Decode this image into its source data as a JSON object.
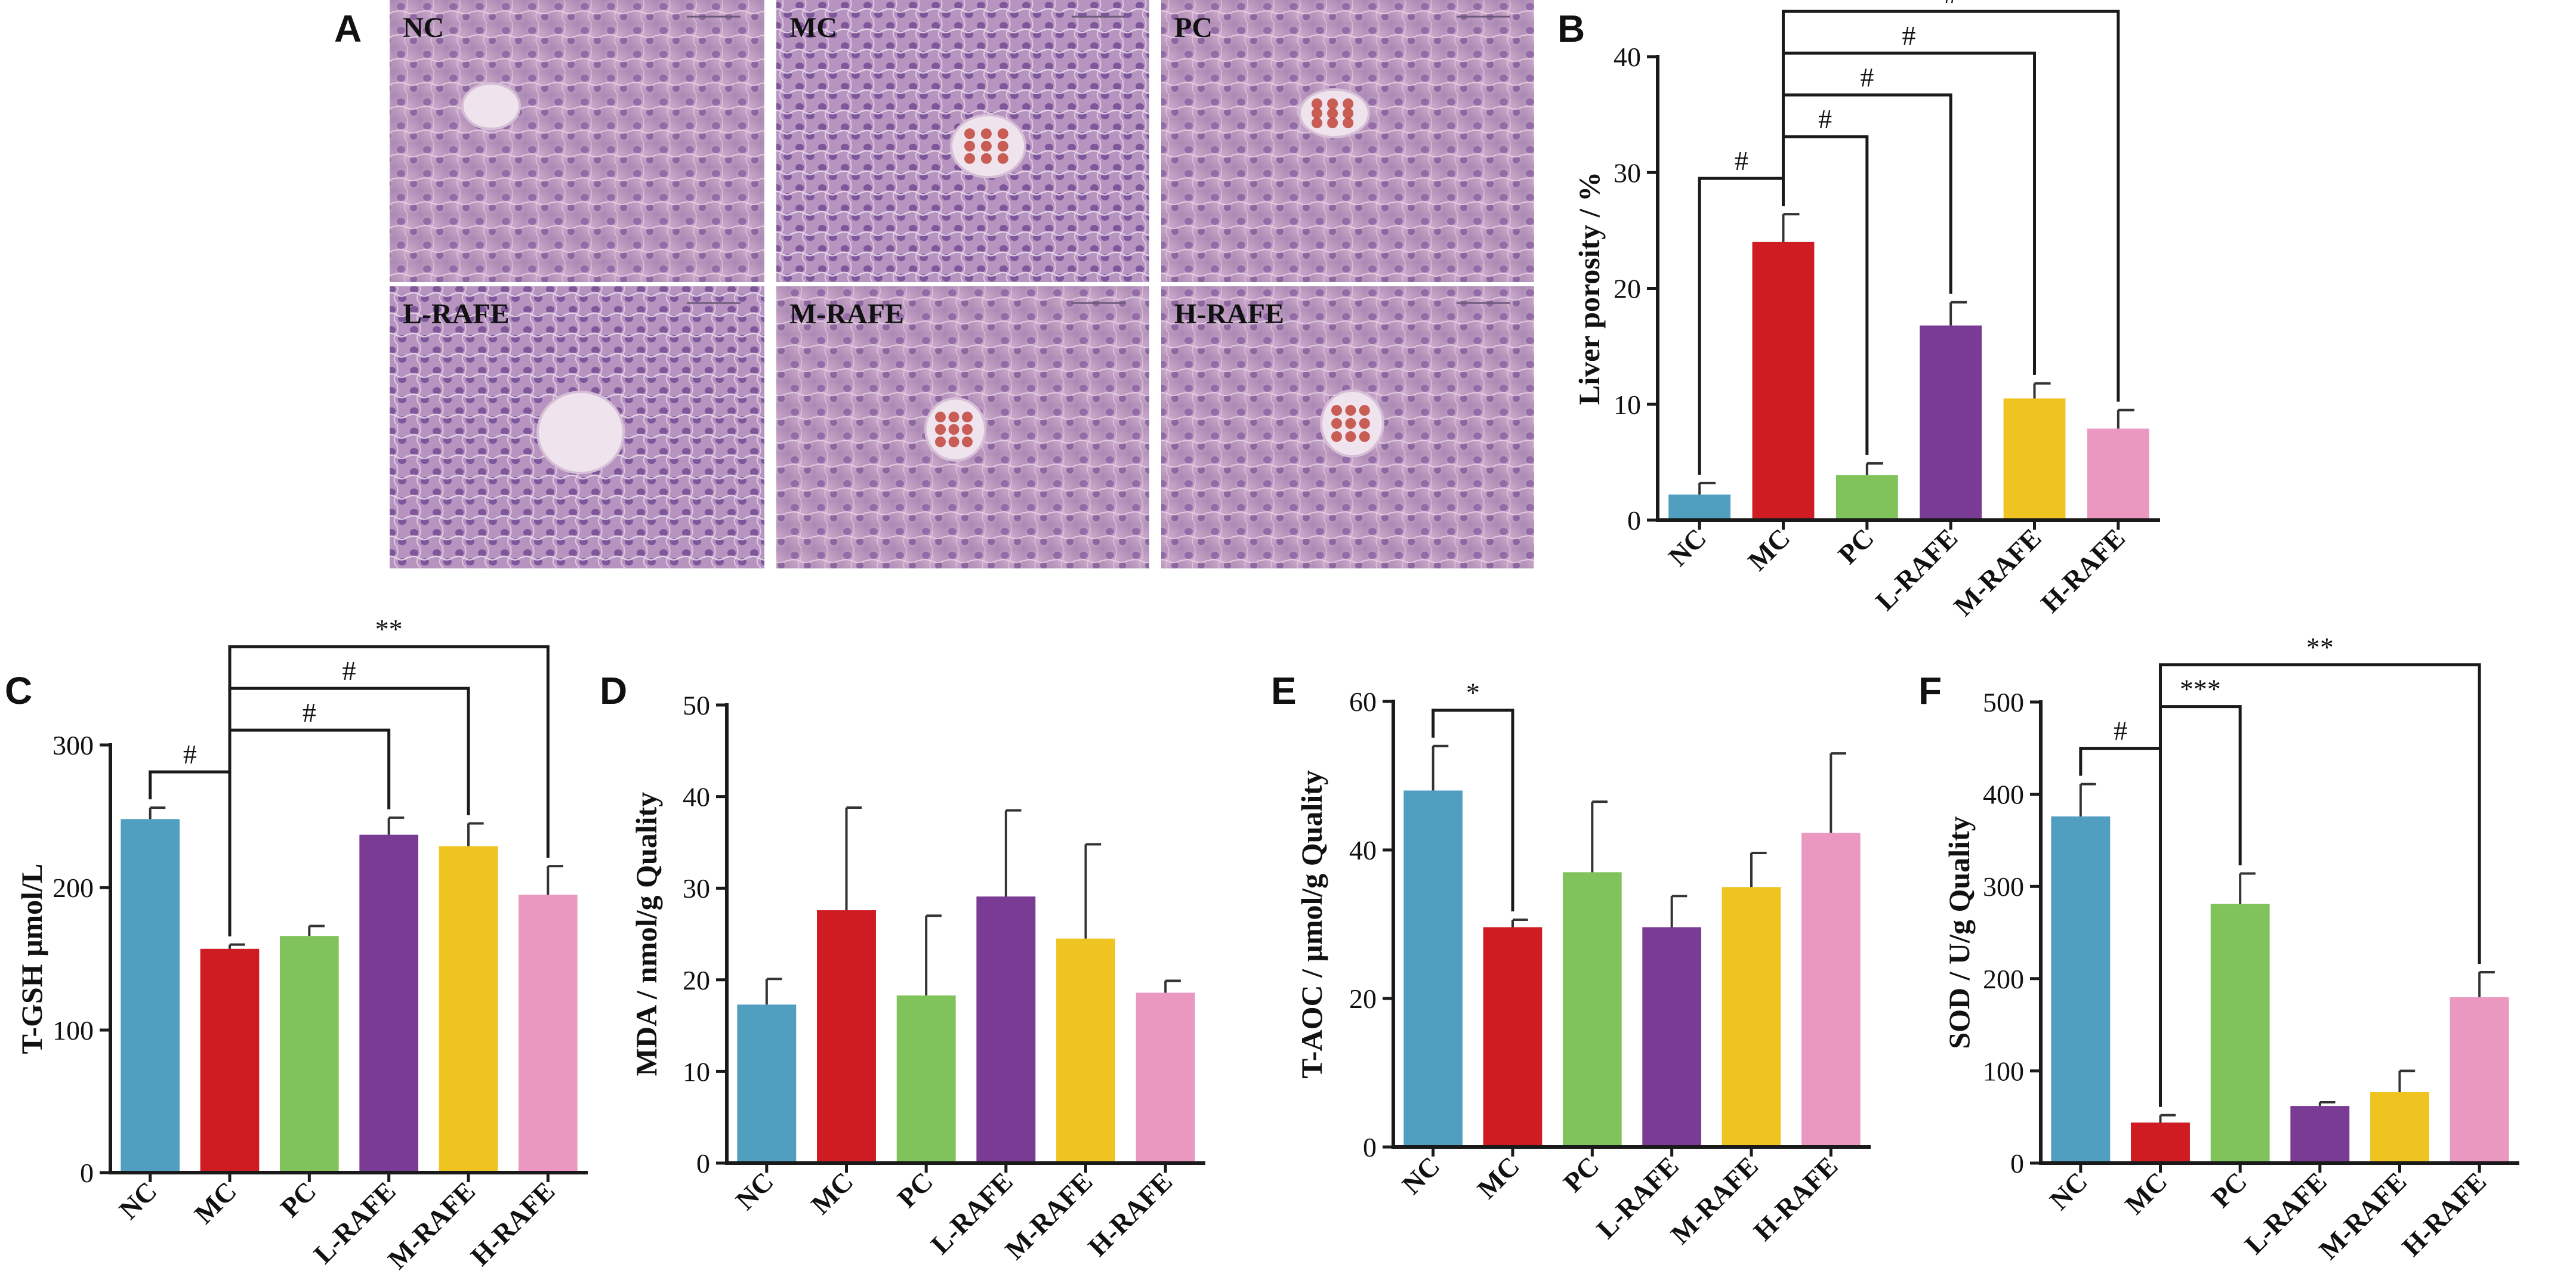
{
  "colors": [
    "#519fc0",
    "#cf1b22",
    "#7fc35a",
    "#7a3b94",
    "#efc420",
    "#eb98c0"
  ],
  "categories": [
    "NC",
    "MC",
    "PC",
    "L-RAFE",
    "M-RAFE",
    "H-RAFE"
  ],
  "histology": {
    "letter": "A",
    "labels": [
      "NC",
      "MC",
      "PC",
      "L-RAFE",
      "M-RAFE",
      "H-RAFE"
    ]
  },
  "chart_data": [
    {
      "id": "B",
      "letter": "B",
      "type": "bar",
      "categories": [
        "NC",
        "MC",
        "PC",
        "L-RAFE",
        "M-RAFE",
        "H-RAFE"
      ],
      "values": [
        2.2,
        24.0,
        3.9,
        16.8,
        10.5,
        7.9
      ],
      "errors": [
        1.0,
        2.4,
        1.0,
        2.0,
        1.3,
        1.6
      ],
      "ylabel": "Liver porosity / %",
      "ylim": [
        0,
        40
      ],
      "yticks": [
        0,
        10,
        20,
        30,
        40
      ],
      "brackets": [
        {
          "from": 0,
          "to": 1,
          "label": "#"
        },
        {
          "from": 1,
          "to": 2,
          "label": "#"
        },
        {
          "from": 1,
          "to": 3,
          "label": "#"
        },
        {
          "from": 1,
          "to": 4,
          "label": "#"
        },
        {
          "from": 1,
          "to": 5,
          "label": "#"
        }
      ]
    },
    {
      "id": "C",
      "letter": "C",
      "type": "bar",
      "categories": [
        "NC",
        "MC",
        "PC",
        "L-RAFE",
        "M-RAFE",
        "H-RAFE"
      ],
      "values": [
        248,
        157,
        166,
        237,
        229,
        195
      ],
      "errors": [
        8,
        3,
        7,
        12,
        16,
        20
      ],
      "ylabel": "T-GSH μmol/L",
      "ylim": [
        0,
        300
      ],
      "yticks": [
        0,
        100,
        200,
        300
      ],
      "brackets": [
        {
          "from": 0,
          "to": 1,
          "label": "#"
        },
        {
          "from": 1,
          "to": 3,
          "label": "#"
        },
        {
          "from": 1,
          "to": 4,
          "label": "#"
        },
        {
          "from": 1,
          "to": 5,
          "label": "**"
        }
      ]
    },
    {
      "id": "D",
      "letter": "D",
      "type": "bar",
      "categories": [
        "NC",
        "MC",
        "PC",
        "L-RAFE",
        "M-RAFE",
        "H-RAFE"
      ],
      "values": [
        17.3,
        27.6,
        18.3,
        29.1,
        24.5,
        18.6
      ],
      "errors": [
        2.8,
        11.2,
        8.7,
        9.4,
        10.3,
        1.3
      ],
      "ylabel": "MDA / nmol/g Quality",
      "ylim": [
        0,
        50
      ],
      "yticks": [
        0,
        10,
        20,
        30,
        40,
        50
      ],
      "brackets": []
    },
    {
      "id": "E",
      "letter": "E",
      "type": "bar",
      "categories": [
        "NC",
        "MC",
        "PC",
        "L-RAFE",
        "M-RAFE",
        "H-RAFE"
      ],
      "values": [
        48,
        29.6,
        37,
        29.6,
        35,
        42.3
      ],
      "errors": [
        6,
        1.0,
        9.5,
        4.2,
        4.6,
        10.7
      ],
      "ylabel": "T-AOC / μmol/g Quality",
      "ylim": [
        0,
        60
      ],
      "yticks": [
        0,
        20,
        40,
        60
      ],
      "brackets": [
        {
          "from": 0,
          "to": 1,
          "label": "*"
        }
      ]
    },
    {
      "id": "F",
      "letter": "F",
      "type": "bar",
      "categories": [
        "NC",
        "MC",
        "PC",
        "L-RAFE",
        "M-RAFE",
        "H-RAFE"
      ],
      "values": [
        376,
        44,
        281,
        62,
        77,
        180
      ],
      "errors": [
        35,
        8,
        33,
        4,
        23,
        27
      ],
      "ylabel": "SOD / U/g Quality",
      "ylim": [
        0,
        500
      ],
      "yticks": [
        0,
        100,
        200,
        300,
        400,
        500
      ],
      "brackets": [
        {
          "from": 0,
          "to": 1,
          "label": "#"
        },
        {
          "from": 1,
          "to": 2,
          "label": "***"
        },
        {
          "from": 1,
          "to": 5,
          "label": "**"
        }
      ]
    }
  ]
}
